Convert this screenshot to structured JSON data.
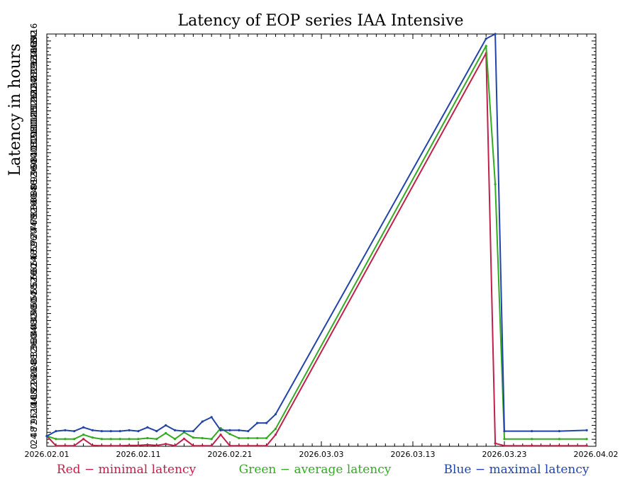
{
  "chart_data": {
    "type": "line",
    "title": "Latency of EOP  series IAA Intensive",
    "ylabel": "Latency in hours",
    "xlabel": "",
    "x_start": "2026-02-01",
    "x_end": "2026-04-02",
    "x_ticks": [
      "2026.02.01",
      "2026.02.11",
      "2026.02.21",
      "2026.03.03",
      "2026.03.13",
      "2026.03.23",
      "2026.04.02"
    ],
    "y_ticks": [
      "0",
      "24",
      "48",
      "72",
      "96",
      "120",
      "144",
      "168",
      "192",
      "216",
      "240",
      "264",
      "288",
      "312",
      "336",
      "360",
      "384",
      "408",
      "432",
      "456",
      "480",
      "504",
      "528",
      "552",
      "576",
      "600",
      "624",
      "648",
      "672",
      "696",
      "720",
      "744",
      "768",
      "792",
      "816",
      "840",
      "864",
      "888",
      "912",
      "936",
      "960",
      "984",
      "1008",
      "1032",
      "1056",
      "1080",
      "1104",
      "1128",
      "1152",
      "1176",
      "1200",
      "1224",
      "1248",
      "1272",
      "1296",
      "1320",
      "1344",
      "1368",
      "1392",
      "1416"
    ],
    "ylim": [
      0,
      1416
    ],
    "grid": false,
    "series": [
      {
        "name": "Red − minimal latency",
        "color": "#c0204a",
        "points": [
          [
            "2026-02-01",
            35
          ],
          [
            "2026-02-02",
            2
          ],
          [
            "2026-02-03",
            2
          ],
          [
            "2026-02-04",
            2
          ],
          [
            "2026-02-05",
            25
          ],
          [
            "2026-02-06",
            3
          ],
          [
            "2026-02-07",
            2
          ],
          [
            "2026-02-08",
            2
          ],
          [
            "2026-02-09",
            2
          ],
          [
            "2026-02-10",
            3
          ],
          [
            "2026-02-11",
            3
          ],
          [
            "2026-02-12",
            5
          ],
          [
            "2026-02-13",
            3
          ],
          [
            "2026-02-14",
            8
          ],
          [
            "2026-02-15",
            2
          ],
          [
            "2026-02-16",
            26
          ],
          [
            "2026-02-17",
            2
          ],
          [
            "2026-02-18",
            2
          ],
          [
            "2026-02-19",
            2
          ],
          [
            "2026-02-20",
            40
          ],
          [
            "2026-02-21",
            2
          ],
          [
            "2026-02-22",
            2
          ],
          [
            "2026-02-23",
            2
          ],
          [
            "2026-02-24",
            2
          ],
          [
            "2026-02-25",
            2
          ],
          [
            "2026-02-26",
            40
          ],
          [
            "2026-03-21",
            1350
          ],
          [
            "2026-03-22",
            10
          ],
          [
            "2026-03-23",
            2
          ],
          [
            "2026-03-26",
            2
          ],
          [
            "2026-03-29",
            2
          ],
          [
            "2026-04-01",
            2
          ]
        ]
      },
      {
        "name": "Green − average latency",
        "color": "#33aa22",
        "points": [
          [
            "2026-02-01",
            35
          ],
          [
            "2026-02-02",
            25
          ],
          [
            "2026-02-03",
            25
          ],
          [
            "2026-02-04",
            25
          ],
          [
            "2026-02-05",
            40
          ],
          [
            "2026-02-06",
            30
          ],
          [
            "2026-02-07",
            25
          ],
          [
            "2026-02-08",
            25
          ],
          [
            "2026-02-09",
            25
          ],
          [
            "2026-02-10",
            25
          ],
          [
            "2026-02-11",
            25
          ],
          [
            "2026-02-12",
            28
          ],
          [
            "2026-02-13",
            25
          ],
          [
            "2026-02-14",
            45
          ],
          [
            "2026-02-15",
            25
          ],
          [
            "2026-02-16",
            48
          ],
          [
            "2026-02-17",
            30
          ],
          [
            "2026-02-18",
            28
          ],
          [
            "2026-02-19",
            25
          ],
          [
            "2026-02-20",
            62
          ],
          [
            "2026-02-21",
            42
          ],
          [
            "2026-02-22",
            28
          ],
          [
            "2026-02-23",
            28
          ],
          [
            "2026-02-24",
            28
          ],
          [
            "2026-02-25",
            28
          ],
          [
            "2026-02-26",
            60
          ],
          [
            "2026-03-21",
            1375
          ],
          [
            "2026-03-22",
            900
          ],
          [
            "2026-03-23",
            25
          ],
          [
            "2026-03-26",
            25
          ],
          [
            "2026-03-29",
            25
          ],
          [
            "2026-04-01",
            25
          ]
        ]
      },
      {
        "name": "Blue − maximal latency",
        "color": "#2244aa",
        "points": [
          [
            "2026-02-01",
            35
          ],
          [
            "2026-02-02",
            52
          ],
          [
            "2026-02-03",
            55
          ],
          [
            "2026-02-04",
            52
          ],
          [
            "2026-02-05",
            65
          ],
          [
            "2026-02-06",
            55
          ],
          [
            "2026-02-07",
            52
          ],
          [
            "2026-02-08",
            52
          ],
          [
            "2026-02-09",
            52
          ],
          [
            "2026-02-10",
            55
          ],
          [
            "2026-02-11",
            52
          ],
          [
            "2026-02-12",
            65
          ],
          [
            "2026-02-13",
            52
          ],
          [
            "2026-02-14",
            72
          ],
          [
            "2026-02-15",
            55
          ],
          [
            "2026-02-16",
            52
          ],
          [
            "2026-02-17",
            52
          ],
          [
            "2026-02-18",
            85
          ],
          [
            "2026-02-19",
            100
          ],
          [
            "2026-02-20",
            55
          ],
          [
            "2026-02-21",
            55
          ],
          [
            "2026-02-22",
            55
          ],
          [
            "2026-02-23",
            52
          ],
          [
            "2026-02-24",
            80
          ],
          [
            "2026-02-25",
            80
          ],
          [
            "2026-02-26",
            110
          ],
          [
            "2026-03-21",
            1400
          ],
          [
            "2026-03-22",
            1416
          ],
          [
            "2026-03-23",
            52
          ],
          [
            "2026-03-26",
            52
          ],
          [
            "2026-03-29",
            52
          ],
          [
            "2026-04-01",
            55
          ]
        ]
      }
    ]
  }
}
